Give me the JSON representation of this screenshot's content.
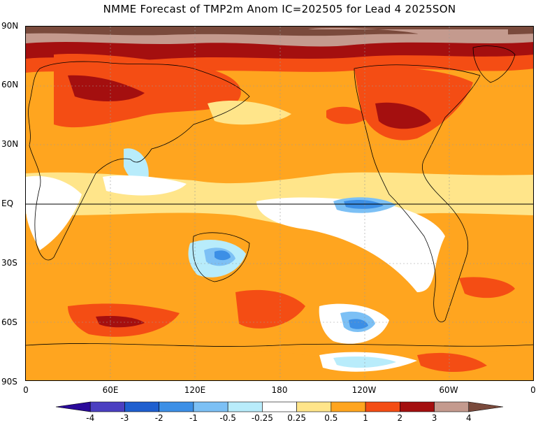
{
  "title": "NMME Forecast of TMP2m Anom IC=202505 for Lead 4 2025SON",
  "latitude_labels": [
    "90N",
    "60N",
    "30N",
    "EQ",
    "30S",
    "60S",
    "90S"
  ],
  "longitude_labels": [
    "0",
    "60E",
    "120E",
    "180",
    "120W",
    "60W",
    "0"
  ],
  "colorbar": {
    "labels": [
      "-4",
      "-3",
      "-2",
      "-1",
      "-0.5",
      "-0.25",
      "0.25",
      "0.5",
      "1",
      "2",
      "3",
      "4"
    ],
    "colors": [
      "#2a0a9a",
      "#4b3fc1",
      "#1f5fcf",
      "#3c8fe6",
      "#7cc0f5",
      "#b8ecfb",
      "#ffffff",
      "#ffe58a",
      "#ffa51f",
      "#f44d14",
      "#a40f0f",
      "#c49a8e",
      "#7a4a3c"
    ]
  },
  "map": {
    "variable": "TMP2m anomaly",
    "dominant_colors": {
      "warm_light": "#ffe58a",
      "warm": "#ffa51f",
      "hot": "#f44d14",
      "very_hot": "#a40f0f",
      "extreme": "#c49a8e",
      "extreme_max": "#7a4a3c",
      "neutral": "#ffffff",
      "cool_light": "#b8ecfb",
      "cool": "#7cc0f5",
      "cool_mid": "#3c8fe6"
    }
  }
}
